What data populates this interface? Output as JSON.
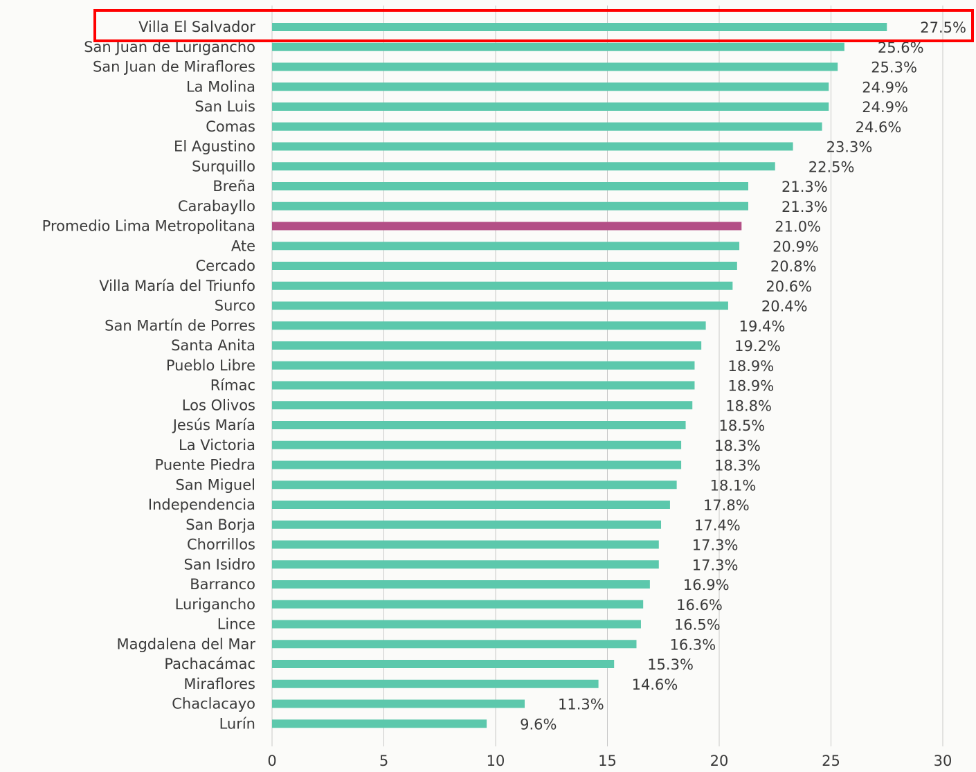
{
  "chart_data": {
    "type": "bar",
    "orientation": "horizontal",
    "title": "",
    "xlabel": "",
    "ylabel": "",
    "xlim": [
      0,
      30
    ],
    "xticks": [
      0,
      5,
      10,
      15,
      20,
      25,
      30
    ],
    "grid": "vertical",
    "legend": "none",
    "colors": {
      "bar": "#5cc8ac",
      "highlight_bar": "#b34f86",
      "highlight_box": "#ff0000",
      "gridline": "#c8c8c8"
    },
    "highlight_category": "Promedio Lima Metropolitana",
    "annotation_box_category": "Villa El Salvador",
    "categories": [
      "Villa El Salvador",
      "San Juan de Lurigancho",
      "San Juan de Miraflores",
      "La Molina",
      "San Luis",
      "Comas",
      "El Agustino",
      "Surquillo",
      "Breña",
      "Carabayllo",
      "Promedio Lima Metropolitana",
      "Ate",
      "Cercado",
      "Villa María del Triunfo",
      "Surco",
      "San Martín de Porres",
      "Santa Anita",
      "Pueblo Libre",
      "Rímac",
      "Los Olivos",
      "Jesús María",
      "La Victoria",
      "Puente Piedra",
      "San Miguel",
      "Independencia",
      "San Borja",
      "Chorrillos",
      "San Isidro",
      "Barranco",
      "Lurigancho",
      "Lince",
      "Magdalena del Mar",
      "Pachacámac",
      "Miraflores",
      "Chaclacayo",
      "Lurín"
    ],
    "values": [
      27.5,
      25.6,
      25.3,
      24.9,
      24.9,
      24.6,
      23.3,
      22.5,
      21.3,
      21.3,
      21.0,
      20.9,
      20.8,
      20.6,
      20.4,
      19.4,
      19.2,
      18.9,
      18.9,
      18.8,
      18.5,
      18.3,
      18.3,
      18.1,
      17.8,
      17.4,
      17.3,
      17.3,
      16.9,
      16.6,
      16.5,
      16.3,
      15.3,
      14.6,
      11.3,
      9.6
    ],
    "value_labels": [
      "27.5%",
      "25.6%",
      "25.3%",
      "24.9%",
      "24.9%",
      "24.6%",
      "23.3%",
      "22.5%",
      "21.3%",
      "21.3%",
      "21.0%",
      "20.9%",
      "20.8%",
      "20.6%",
      "20.4%",
      "19.4%",
      "19.2%",
      "18.9%",
      "18.9%",
      "18.8%",
      "18.5%",
      "18.3%",
      "18.3%",
      "18.1%",
      "17.8%",
      "17.4%",
      "17.3%",
      "17.3%",
      "16.9%",
      "16.6%",
      "16.5%",
      "16.3%",
      "15.3%",
      "14.6%",
      "11.3%",
      "9.6%"
    ]
  }
}
